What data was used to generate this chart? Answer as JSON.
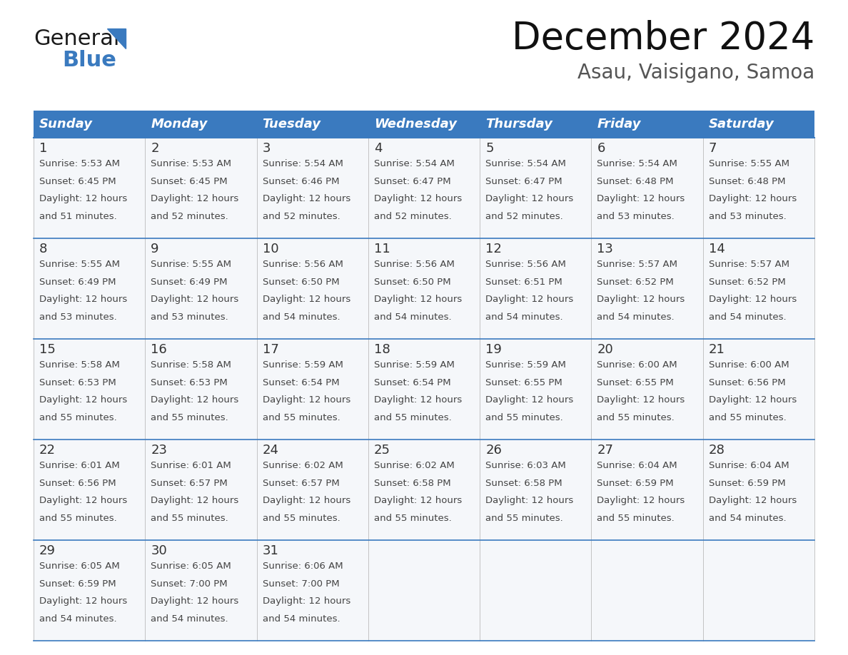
{
  "title": "December 2024",
  "subtitle": "Asau, Vaisigano, Samoa",
  "header_color": "#3a7abf",
  "header_text_color": "#ffffff",
  "day_names": [
    "Sunday",
    "Monday",
    "Tuesday",
    "Wednesday",
    "Thursday",
    "Friday",
    "Saturday"
  ],
  "background_color": "#ffffff",
  "row_line_color": "#3a7abf",
  "cell_bg_color": "#f0f4f8",
  "days": [
    {
      "day": 1,
      "col": 0,
      "row": 0,
      "sunrise": "5:53 AM",
      "sunset": "6:45 PM",
      "daylight": "12 hours and 51 minutes"
    },
    {
      "day": 2,
      "col": 1,
      "row": 0,
      "sunrise": "5:53 AM",
      "sunset": "6:45 PM",
      "daylight": "12 hours and 52 minutes"
    },
    {
      "day": 3,
      "col": 2,
      "row": 0,
      "sunrise": "5:54 AM",
      "sunset": "6:46 PM",
      "daylight": "12 hours and 52 minutes"
    },
    {
      "day": 4,
      "col": 3,
      "row": 0,
      "sunrise": "5:54 AM",
      "sunset": "6:47 PM",
      "daylight": "12 hours and 52 minutes"
    },
    {
      "day": 5,
      "col": 4,
      "row": 0,
      "sunrise": "5:54 AM",
      "sunset": "6:47 PM",
      "daylight": "12 hours and 52 minutes"
    },
    {
      "day": 6,
      "col": 5,
      "row": 0,
      "sunrise": "5:54 AM",
      "sunset": "6:48 PM",
      "daylight": "12 hours and 53 minutes"
    },
    {
      "day": 7,
      "col": 6,
      "row": 0,
      "sunrise": "5:55 AM",
      "sunset": "6:48 PM",
      "daylight": "12 hours and 53 minutes"
    },
    {
      "day": 8,
      "col": 0,
      "row": 1,
      "sunrise": "5:55 AM",
      "sunset": "6:49 PM",
      "daylight": "12 hours and 53 minutes"
    },
    {
      "day": 9,
      "col": 1,
      "row": 1,
      "sunrise": "5:55 AM",
      "sunset": "6:49 PM",
      "daylight": "12 hours and 53 minutes"
    },
    {
      "day": 10,
      "col": 2,
      "row": 1,
      "sunrise": "5:56 AM",
      "sunset": "6:50 PM",
      "daylight": "12 hours and 54 minutes"
    },
    {
      "day": 11,
      "col": 3,
      "row": 1,
      "sunrise": "5:56 AM",
      "sunset": "6:50 PM",
      "daylight": "12 hours and 54 minutes"
    },
    {
      "day": 12,
      "col": 4,
      "row": 1,
      "sunrise": "5:56 AM",
      "sunset": "6:51 PM",
      "daylight": "12 hours and 54 minutes"
    },
    {
      "day": 13,
      "col": 5,
      "row": 1,
      "sunrise": "5:57 AM",
      "sunset": "6:52 PM",
      "daylight": "12 hours and 54 minutes"
    },
    {
      "day": 14,
      "col": 6,
      "row": 1,
      "sunrise": "5:57 AM",
      "sunset": "6:52 PM",
      "daylight": "12 hours and 54 minutes"
    },
    {
      "day": 15,
      "col": 0,
      "row": 2,
      "sunrise": "5:58 AM",
      "sunset": "6:53 PM",
      "daylight": "12 hours and 55 minutes"
    },
    {
      "day": 16,
      "col": 1,
      "row": 2,
      "sunrise": "5:58 AM",
      "sunset": "6:53 PM",
      "daylight": "12 hours and 55 minutes"
    },
    {
      "day": 17,
      "col": 2,
      "row": 2,
      "sunrise": "5:59 AM",
      "sunset": "6:54 PM",
      "daylight": "12 hours and 55 minutes"
    },
    {
      "day": 18,
      "col": 3,
      "row": 2,
      "sunrise": "5:59 AM",
      "sunset": "6:54 PM",
      "daylight": "12 hours and 55 minutes"
    },
    {
      "day": 19,
      "col": 4,
      "row": 2,
      "sunrise": "5:59 AM",
      "sunset": "6:55 PM",
      "daylight": "12 hours and 55 minutes"
    },
    {
      "day": 20,
      "col": 5,
      "row": 2,
      "sunrise": "6:00 AM",
      "sunset": "6:55 PM",
      "daylight": "12 hours and 55 minutes"
    },
    {
      "day": 21,
      "col": 6,
      "row": 2,
      "sunrise": "6:00 AM",
      "sunset": "6:56 PM",
      "daylight": "12 hours and 55 minutes"
    },
    {
      "day": 22,
      "col": 0,
      "row": 3,
      "sunrise": "6:01 AM",
      "sunset": "6:56 PM",
      "daylight": "12 hours and 55 minutes"
    },
    {
      "day": 23,
      "col": 1,
      "row": 3,
      "sunrise": "6:01 AM",
      "sunset": "6:57 PM",
      "daylight": "12 hours and 55 minutes"
    },
    {
      "day": 24,
      "col": 2,
      "row": 3,
      "sunrise": "6:02 AM",
      "sunset": "6:57 PM",
      "daylight": "12 hours and 55 minutes"
    },
    {
      "day": 25,
      "col": 3,
      "row": 3,
      "sunrise": "6:02 AM",
      "sunset": "6:58 PM",
      "daylight": "12 hours and 55 minutes"
    },
    {
      "day": 26,
      "col": 4,
      "row": 3,
      "sunrise": "6:03 AM",
      "sunset": "6:58 PM",
      "daylight": "12 hours and 55 minutes"
    },
    {
      "day": 27,
      "col": 5,
      "row": 3,
      "sunrise": "6:04 AM",
      "sunset": "6:59 PM",
      "daylight": "12 hours and 55 minutes"
    },
    {
      "day": 28,
      "col": 6,
      "row": 3,
      "sunrise": "6:04 AM",
      "sunset": "6:59 PM",
      "daylight": "12 hours and 54 minutes"
    },
    {
      "day": 29,
      "col": 0,
      "row": 4,
      "sunrise": "6:05 AM",
      "sunset": "6:59 PM",
      "daylight": "12 hours and 54 minutes"
    },
    {
      "day": 30,
      "col": 1,
      "row": 4,
      "sunrise": "6:05 AM",
      "sunset": "7:00 PM",
      "daylight": "12 hours and 54 minutes"
    },
    {
      "day": 31,
      "col": 2,
      "row": 4,
      "sunrise": "6:06 AM",
      "sunset": "7:00 PM",
      "daylight": "12 hours and 54 minutes"
    }
  ],
  "logo_text_general": "General",
  "logo_text_blue": "Blue",
  "logo_color_general": "#1a1a1a",
  "logo_color_blue": "#3a7abf",
  "logo_triangle_color": "#3a7abf",
  "title_fontsize": 38,
  "subtitle_fontsize": 20,
  "header_fontsize": 13,
  "day_num_fontsize": 13,
  "cell_text_fontsize": 9.5
}
